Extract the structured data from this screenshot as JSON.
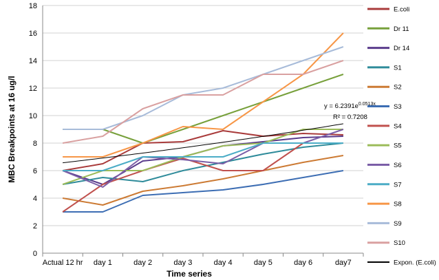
{
  "chart_data": {
    "type": "line",
    "title": "",
    "xlabel": "Time series",
    "ylabel": "MBC Breakpoints at 16 ug/l",
    "ylim": [
      0,
      18
    ],
    "yticks": [
      "0",
      "2",
      "4",
      "6",
      "8",
      "10",
      "12",
      "14",
      "16",
      "18"
    ],
    "categories": [
      "Actual 12 hr",
      "day 1",
      "day 2",
      "day 3",
      "day 4",
      "day 5",
      "day 6",
      "day7"
    ],
    "grid": "horizontal",
    "legend_position": "right",
    "series": [
      {
        "name": "E.coli",
        "color": "#a93b3b",
        "values": [
          6,
          6.5,
          8,
          8.1,
          8.9,
          8.5,
          8.7,
          8.6
        ]
      },
      {
        "name": "Dr 11",
        "color": "#77a03b",
        "values": [
          9,
          9,
          8,
          9,
          10,
          11,
          12,
          13
        ]
      },
      {
        "name": "Dr 14",
        "color": "#5a3c8c",
        "values": [
          6,
          5,
          6.7,
          7,
          7.8,
          8.1,
          8.4,
          8.5
        ]
      },
      {
        "name": "S1",
        "color": "#2e8b9a",
        "values": [
          5,
          5.5,
          5.2,
          6,
          6.6,
          7.2,
          7.7,
          8
        ]
      },
      {
        "name": "S2",
        "color": "#cc7a33",
        "values": [
          4,
          3.5,
          4.5,
          4.9,
          5.4,
          6,
          6.6,
          7.1
        ]
      },
      {
        "name": "S3",
        "color": "#3c6db3",
        "values": [
          3,
          3,
          4.2,
          4.4,
          4.6,
          5,
          5.5,
          6
        ]
      },
      {
        "name": "S4",
        "color": "#c0504d",
        "values": [
          3,
          5,
          6,
          6.9,
          6,
          6,
          8,
          8
        ]
      },
      {
        "name": "S5",
        "color": "#9bbb59",
        "values": [
          5,
          6,
          6,
          7,
          7.8,
          8,
          9,
          9
        ]
      },
      {
        "name": "S6",
        "color": "#7b5ea7",
        "values": [
          6,
          4.8,
          7,
          6.8,
          6.5,
          8,
          8,
          9
        ]
      },
      {
        "name": "S7",
        "color": "#4bacc6",
        "values": [
          6,
          6,
          7,
          7,
          7,
          8,
          8,
          8
        ]
      },
      {
        "name": "S8",
        "color": "#f79646",
        "values": [
          7,
          7,
          8,
          9.2,
          9,
          11,
          13,
          16
        ]
      },
      {
        "name": "S9",
        "color": "#a7bbd9",
        "values": [
          9,
          9,
          10,
          11.5,
          12,
          13,
          14,
          15
        ]
      },
      {
        "name": "S10",
        "color": "#d9a0a0",
        "values": [
          8,
          8.5,
          10.5,
          11.5,
          11.5,
          13,
          13,
          14
        ]
      }
    ],
    "trendline": {
      "name": "Expon. (E.coli)",
      "color": "#000000",
      "a": 6.2391,
      "b": 0.0513,
      "equation": "y = 6.2391e",
      "exponent": "0.0513x",
      "r_squared": "R² = 0.7208"
    }
  }
}
